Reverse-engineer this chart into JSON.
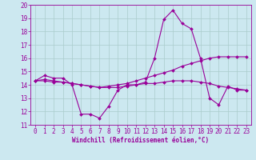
{
  "xlabel": "Windchill (Refroidissement éolien,°C)",
  "bg_color": "#cce8f0",
  "grid_color": "#aacccc",
  "line_color": "#990099",
  "xlim": [
    -0.5,
    23.5
  ],
  "ylim": [
    11,
    20
  ],
  "yticks": [
    11,
    12,
    13,
    14,
    15,
    16,
    17,
    18,
    19,
    20
  ],
  "xticks": [
    0,
    1,
    2,
    3,
    4,
    5,
    6,
    7,
    8,
    9,
    10,
    11,
    12,
    13,
    14,
    15,
    16,
    17,
    18,
    19,
    20,
    21,
    22,
    23
  ],
  "curve1_x": [
    0,
    1,
    2,
    3,
    4,
    5,
    6,
    7,
    8,
    9,
    10,
    11,
    12,
    13,
    14,
    15,
    16,
    17,
    18,
    19,
    20,
    21,
    22,
    23
  ],
  "curve1_y": [
    14.3,
    14.7,
    14.5,
    14.5,
    14.0,
    11.8,
    11.8,
    11.5,
    12.4,
    13.6,
    14.0,
    14.0,
    14.2,
    16.0,
    18.9,
    19.6,
    18.6,
    18.2,
    16.0,
    13.0,
    12.5,
    13.9,
    13.6,
    13.6
  ],
  "curve2_x": [
    0,
    1,
    2,
    3,
    4,
    5,
    6,
    7,
    8,
    9,
    10,
    11,
    12,
    13,
    14,
    15,
    16,
    17,
    18,
    19,
    20,
    21,
    22,
    23
  ],
  "curve2_y": [
    14.3,
    14.4,
    14.3,
    14.2,
    14.1,
    14.0,
    13.9,
    13.8,
    13.9,
    14.0,
    14.1,
    14.3,
    14.5,
    14.7,
    14.9,
    15.1,
    15.4,
    15.6,
    15.8,
    16.0,
    16.1,
    16.1,
    16.1,
    16.1
  ],
  "curve3_x": [
    0,
    1,
    2,
    3,
    4,
    5,
    6,
    7,
    8,
    9,
    10,
    11,
    12,
    13,
    14,
    15,
    16,
    17,
    18,
    19,
    20,
    21,
    22,
    23
  ],
  "curve3_y": [
    14.3,
    14.3,
    14.2,
    14.2,
    14.1,
    14.0,
    13.9,
    13.8,
    13.8,
    13.8,
    13.9,
    14.0,
    14.1,
    14.1,
    14.2,
    14.3,
    14.3,
    14.3,
    14.2,
    14.1,
    13.9,
    13.8,
    13.7,
    13.6
  ],
  "tick_fontsize": 5.5,
  "xlabel_fontsize": 5.5,
  "marker_size": 2.0,
  "line_width": 0.8
}
